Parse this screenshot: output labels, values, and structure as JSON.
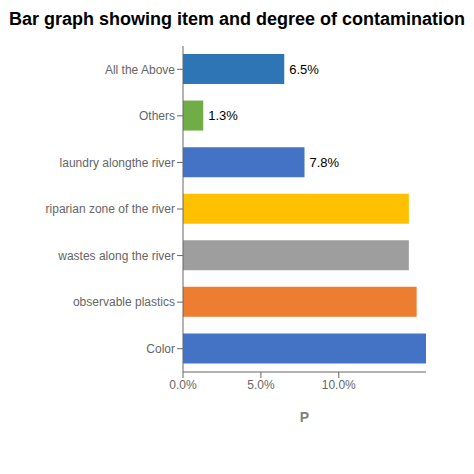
{
  "chart_data": {
    "type": "bar",
    "orientation": "horizontal",
    "title": "Bar graph showing item and degree of contamination",
    "categories": [
      "Color",
      "observable plastics",
      "wastes along the river",
      "riparian zone of the river",
      "laundry alongthe river",
      "Others",
      "All the Above"
    ],
    "values": [
      15.6,
      15.0,
      14.5,
      14.5,
      7.8,
      1.3,
      6.5
    ],
    "value_labels": [
      null,
      null,
      null,
      null,
      "7.8%",
      "1.3%",
      "6.5%"
    ],
    "colors": [
      "#4472C4",
      "#ED7D31",
      "#9E9E9E",
      "#FFC000",
      "#4472C4",
      "#70AD47",
      "#2E75B6"
    ],
    "xlabel": "P",
    "xlim": [
      0,
      15.6
    ],
    "xticks": [
      {
        "value": 0.0,
        "label": "0.0%"
      },
      {
        "value": 5.0,
        "label": "5.0%"
      },
      {
        "value": 10.0,
        "label": "10.0%"
      }
    ],
    "grid": false
  }
}
